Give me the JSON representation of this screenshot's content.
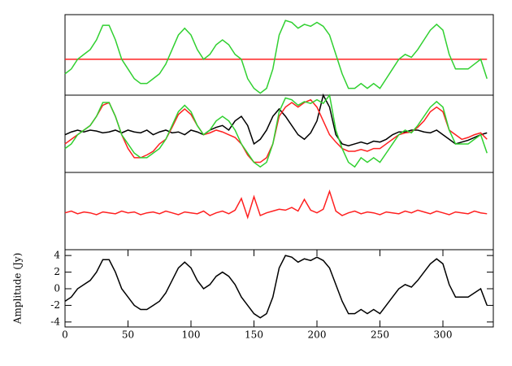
{
  "chart_data": [
    {
      "type": "line",
      "xlim": [
        0,
        340
      ],
      "ylim": [
        -3.7,
        4.6
      ],
      "x": [
        0,
        5,
        10,
        15,
        20,
        25,
        30,
        35,
        40,
        45,
        50,
        55,
        60,
        65,
        70,
        75,
        80,
        85,
        90,
        95,
        100,
        105,
        110,
        115,
        120,
        125,
        130,
        135,
        140,
        145,
        150,
        155,
        160,
        165,
        170,
        175,
        180,
        185,
        190,
        195,
        200,
        205,
        210,
        215,
        220,
        225,
        230,
        235,
        240,
        245,
        250,
        255,
        260,
        265,
        270,
        275,
        280,
        285,
        290,
        295,
        300,
        305,
        310,
        315,
        320,
        325,
        330,
        335
      ],
      "series": [
        {
          "color": "#ff2020",
          "values": [
            0,
            0,
            0,
            0,
            0,
            0,
            0,
            0,
            0,
            0,
            0,
            0,
            0,
            0,
            0,
            0,
            0,
            0,
            0,
            0,
            0,
            0,
            0,
            0,
            0,
            0,
            0,
            0,
            0,
            0,
            0,
            0,
            0,
            0,
            0,
            0,
            0,
            0,
            0,
            0,
            0,
            0,
            0,
            0,
            0,
            0,
            0,
            0,
            0,
            0,
            0,
            0,
            0,
            0,
            0,
            0,
            0,
            0,
            0,
            0,
            0,
            0,
            0,
            0,
            0,
            0,
            0,
            0
          ]
        },
        {
          "color": "#30d030",
          "values": [
            -1.5,
            -1,
            0,
            0.5,
            1,
            2,
            3.5,
            3.5,
            2,
            0,
            -1,
            -2,
            -2.5,
            -2.5,
            -2,
            -1.5,
            -0.5,
            1,
            2.5,
            3.2,
            2.5,
            1,
            0,
            0.5,
            1.5,
            2,
            1.5,
            0.5,
            0,
            -2,
            -3,
            -3.5,
            -3,
            -1,
            2.5,
            4,
            3.8,
            3.2,
            3.6,
            3.4,
            3.8,
            3.4,
            2.5,
            0.5,
            -1.5,
            -3,
            -3,
            -2.5,
            -3,
            -2.5,
            -3,
            -2,
            -1,
            0,
            0.5,
            0.2,
            1,
            2,
            3,
            3.6,
            3,
            0.5,
            -1,
            -1,
            -1,
            -0.5,
            0,
            -2
          ]
        }
      ]
    },
    {
      "type": "line",
      "xlim": [
        0,
        340
      ],
      "ylim": [
        -4.1,
        4.3
      ],
      "x": [
        0,
        5,
        10,
        15,
        20,
        25,
        30,
        35,
        40,
        45,
        50,
        55,
        60,
        65,
        70,
        75,
        80,
        85,
        90,
        95,
        100,
        105,
        110,
        115,
        120,
        125,
        130,
        135,
        140,
        145,
        150,
        155,
        160,
        165,
        170,
        175,
        180,
        185,
        190,
        195,
        200,
        205,
        210,
        215,
        220,
        225,
        230,
        235,
        240,
        245,
        250,
        255,
        260,
        265,
        270,
        275,
        280,
        285,
        290,
        295,
        300,
        305,
        310,
        315,
        320,
        325,
        330,
        335
      ],
      "series": [
        {
          "color": "#000000",
          "values": [
            0,
            0.3,
            0.5,
            0.3,
            0.5,
            0.4,
            0.2,
            0.3,
            0.5,
            0.2,
            0.5,
            0.3,
            0.2,
            0.5,
            0,
            0.3,
            0.5,
            0.2,
            0.3,
            0,
            0.5,
            0.3,
            0,
            0.5,
            0.8,
            1,
            0.5,
            1.5,
            2,
            1,
            -1,
            -0.5,
            0.5,
            2,
            2.8,
            2,
            1,
            0,
            -0.5,
            0.2,
            1.5,
            4.3,
            3,
            0,
            -1,
            -1.2,
            -1,
            -0.8,
            -1,
            -0.7,
            -0.8,
            -0.5,
            0,
            0.3,
            0.3,
            0.5,
            0.5,
            0.3,
            0.2,
            0.5,
            0,
            -0.5,
            -1,
            -0.8,
            -0.6,
            -0.3,
            0,
            0.2
          ]
        },
        {
          "color": "#ff2020",
          "values": [
            -1,
            -0.5,
            0,
            0.5,
            1,
            2,
            3.2,
            3.5,
            2,
            0,
            -1.5,
            -2.5,
            -2.5,
            -2.2,
            -1.8,
            -1,
            -0.5,
            0.8,
            2.2,
            2.8,
            2.2,
            1,
            0,
            0.2,
            0.5,
            0.3,
            0,
            -0.3,
            -1,
            -2.2,
            -3,
            -3,
            -2.5,
            -1,
            2,
            3,
            3.5,
            3,
            3.5,
            3.8,
            3,
            1.5,
            0,
            -0.8,
            -1.5,
            -1.8,
            -1.8,
            -1.6,
            -1.8,
            -1.5,
            -1.5,
            -1,
            -0.5,
            0,
            0.2,
            0.3,
            0.8,
            1.5,
            2.5,
            3,
            2.5,
            0.5,
            0,
            -0.5,
            -0.3,
            0,
            0.2,
            -0.5
          ]
        },
        {
          "color": "#30d030",
          "values": [
            -1.5,
            -1,
            0,
            0.5,
            1,
            2,
            3.5,
            3.5,
            2,
            0,
            -1,
            -2,
            -2.5,
            -2.5,
            -2,
            -1.5,
            -0.5,
            1,
            2.5,
            3.2,
            2.5,
            1,
            0,
            0.5,
            1.5,
            2,
            1.5,
            0.5,
            -1,
            -2,
            -3,
            -3.5,
            -3,
            -1,
            2.5,
            4,
            3.8,
            3.2,
            3.6,
            3.4,
            3.8,
            3.4,
            4.3,
            0.5,
            -1.5,
            -3,
            -3.5,
            -2.5,
            -3,
            -2.5,
            -3,
            -2,
            -1,
            0,
            0.5,
            0.2,
            1,
            2,
            3,
            3.6,
            3,
            0.5,
            -1,
            -1,
            -1,
            -0.5,
            0,
            -2
          ]
        }
      ]
    },
    {
      "type": "line",
      "xlim": [
        0,
        340
      ],
      "ylim": [
        -4.1,
        4.5
      ],
      "x": [
        0,
        5,
        10,
        15,
        20,
        25,
        30,
        35,
        40,
        45,
        50,
        55,
        60,
        65,
        70,
        75,
        80,
        85,
        90,
        95,
        100,
        105,
        110,
        115,
        120,
        125,
        130,
        135,
        140,
        145,
        150,
        155,
        160,
        165,
        170,
        175,
        180,
        185,
        190,
        195,
        200,
        205,
        210,
        215,
        220,
        225,
        230,
        235,
        240,
        245,
        250,
        255,
        260,
        265,
        270,
        275,
        280,
        285,
        290,
        295,
        300,
        305,
        310,
        315,
        320,
        325,
        330,
        335
      ],
      "series": [
        {
          "color": "#ff2020",
          "values": [
            0,
            0.2,
            -0.1,
            0.1,
            0,
            -0.2,
            0.1,
            0,
            -0.1,
            0.2,
            0,
            0.1,
            -0.2,
            0,
            0.1,
            -0.1,
            0.2,
            0,
            -0.2,
            0.1,
            0,
            -0.1,
            0.2,
            -0.3,
            0,
            0.2,
            -0.1,
            0.3,
            1.6,
            -0.5,
            1.8,
            -0.3,
            0,
            0.2,
            0.4,
            0.3,
            0.6,
            0.2,
            1.5,
            0.3,
            0,
            0.4,
            2.4,
            0.2,
            -0.3,
            0,
            0.2,
            -0.1,
            0.1,
            0,
            -0.2,
            0.1,
            0,
            -0.1,
            0.2,
            0,
            0.3,
            0.1,
            -0.1,
            0.2,
            0,
            -0.2,
            0.1,
            0,
            -0.1,
            0.2,
            0,
            -0.1
          ]
        }
      ]
    },
    {
      "type": "line",
      "xlim": [
        0,
        340
      ],
      "ylim": [
        -4.6,
        4.7
      ],
      "ylabel": "Amplitude (Jy)",
      "xticks": [
        0,
        50,
        100,
        150,
        200,
        250,
        300
      ],
      "yticks": [
        -4,
        -2,
        0,
        2,
        4
      ],
      "x": [
        0,
        5,
        10,
        15,
        20,
        25,
        30,
        35,
        40,
        45,
        50,
        55,
        60,
        65,
        70,
        75,
        80,
        85,
        90,
        95,
        100,
        105,
        110,
        115,
        120,
        125,
        130,
        135,
        140,
        145,
        150,
        155,
        160,
        165,
        170,
        175,
        180,
        185,
        190,
        195,
        200,
        205,
        210,
        215,
        220,
        225,
        230,
        235,
        240,
        245,
        250,
        255,
        260,
        265,
        270,
        275,
        280,
        285,
        290,
        295,
        300,
        305,
        310,
        315,
        320,
        325,
        330,
        335
      ],
      "series": [
        {
          "color": "#000000",
          "values": [
            -1.5,
            -1,
            0,
            0.5,
            1,
            2,
            3.5,
            3.5,
            2,
            0,
            -1,
            -2,
            -2.5,
            -2.5,
            -2,
            -1.5,
            -0.5,
            1,
            2.5,
            3.2,
            2.5,
            1,
            0,
            0.5,
            1.5,
            2,
            1.5,
            0.5,
            -1,
            -2,
            -3,
            -3.5,
            -3,
            -1,
            2.5,
            4,
            3.8,
            3.2,
            3.6,
            3.4,
            3.8,
            3.4,
            2.5,
            0.5,
            -1.5,
            -3,
            -3,
            -2.5,
            -3,
            -2.5,
            -3,
            -2,
            -1,
            0,
            0.5,
            0.2,
            1,
            2,
            3,
            3.6,
            3,
            0.5,
            -1,
            -1,
            -1,
            -0.5,
            0,
            -2
          ]
        }
      ]
    }
  ]
}
